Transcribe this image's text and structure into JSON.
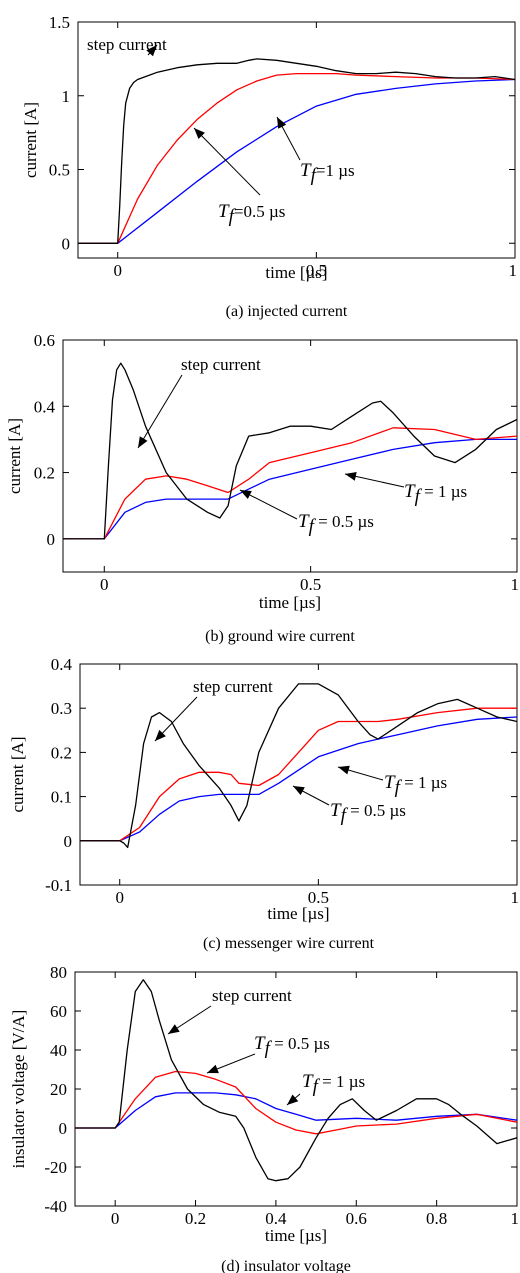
{
  "chart_data": [
    {
      "type": "line",
      "caption": "(a) injected current",
      "xlabel": "time [µs]",
      "ylabel": "current [A]",
      "xlim": [
        -0.1,
        1
      ],
      "ylim": [
        -0.1,
        1.5
      ],
      "xticks": [
        "0",
        "0.5",
        "1"
      ],
      "xtick_values": [
        0,
        0.5,
        1
      ],
      "yticks": [
        "0",
        "0.5",
        "1",
        "1.5"
      ],
      "ytick_values": [
        0,
        0.5,
        1,
        1.5
      ],
      "grid": false,
      "series": [
        {
          "name": "step current",
          "color": "#000000",
          "x": [
            -0.1,
            0,
            0.005,
            0.01,
            0.015,
            0.02,
            0.03,
            0.04,
            0.05,
            0.08,
            0.1,
            0.15,
            0.2,
            0.25,
            0.3,
            0.33,
            0.35,
            0.4,
            0.5,
            0.55,
            0.6,
            0.65,
            0.7,
            0.75,
            0.8,
            0.85,
            0.9,
            0.95,
            1
          ],
          "y": [
            0,
            0,
            0.25,
            0.55,
            0.8,
            0.95,
            1.05,
            1.09,
            1.11,
            1.14,
            1.16,
            1.19,
            1.21,
            1.22,
            1.22,
            1.24,
            1.25,
            1.24,
            1.2,
            1.17,
            1.15,
            1.15,
            1.16,
            1.15,
            1.13,
            1.12,
            1.12,
            1.13,
            1.11
          ]
        },
        {
          "name": "Tf = 0.5 µs",
          "color": "#ff0000",
          "x": [
            -0.1,
            0,
            0.05,
            0.1,
            0.15,
            0.2,
            0.25,
            0.3,
            0.35,
            0.4,
            0.45,
            0.5,
            0.55,
            0.6,
            0.7,
            0.8,
            0.9,
            1
          ],
          "y": [
            0,
            0,
            0.3,
            0.53,
            0.7,
            0.84,
            0.95,
            1.04,
            1.1,
            1.14,
            1.15,
            1.15,
            1.15,
            1.14,
            1.13,
            1.12,
            1.12,
            1.11
          ]
        },
        {
          "name": "Tf = 1 µs",
          "color": "#0000ff",
          "x": [
            -0.1,
            0,
            0.1,
            0.2,
            0.3,
            0.4,
            0.5,
            0.6,
            0.7,
            0.8,
            0.9,
            1
          ],
          "y": [
            0,
            0,
            0.21,
            0.42,
            0.62,
            0.79,
            0.93,
            1.01,
            1.05,
            1.08,
            1.1,
            1.11
          ]
        }
      ],
      "annotations": [
        {
          "text": "step current",
          "style": "plain"
        },
        {
          "text": "T",
          "sub": "f",
          "rest": "=1 µs",
          "style": "italic"
        },
        {
          "text": "T",
          "sub": "f",
          "rest": "=0.5 µs",
          "style": "italic"
        }
      ]
    },
    {
      "type": "line",
      "caption": "(b) ground wire current",
      "xlabel": "time [µs]",
      "ylabel": "current [A]",
      "xlim": [
        -0.1,
        1
      ],
      "ylim": [
        -0.1,
        0.6
      ],
      "xticks": [
        "0",
        "0.5",
        "1"
      ],
      "xtick_values": [
        0,
        0.5,
        1
      ],
      "yticks": [
        "0",
        "0.2",
        "0.4",
        "0.6"
      ],
      "ytick_values": [
        0,
        0.2,
        0.4,
        0.6
      ],
      "grid": false,
      "series": [
        {
          "name": "step current",
          "color": "#000000",
          "x": [
            -0.1,
            0,
            0.01,
            0.02,
            0.03,
            0.04,
            0.05,
            0.07,
            0.1,
            0.15,
            0.2,
            0.25,
            0.28,
            0.3,
            0.32,
            0.35,
            0.4,
            0.45,
            0.5,
            0.55,
            0.6,
            0.65,
            0.67,
            0.7,
            0.75,
            0.8,
            0.85,
            0.9,
            0.95,
            1
          ],
          "y": [
            0,
            0,
            0.22,
            0.42,
            0.51,
            0.53,
            0.51,
            0.45,
            0.34,
            0.2,
            0.12,
            0.08,
            0.063,
            0.1,
            0.22,
            0.31,
            0.32,
            0.34,
            0.34,
            0.33,
            0.37,
            0.41,
            0.415,
            0.38,
            0.31,
            0.25,
            0.23,
            0.27,
            0.33,
            0.36
          ]
        },
        {
          "name": "Tf = 0.5 µs",
          "color": "#ff0000",
          "x": [
            -0.1,
            0,
            0.05,
            0.1,
            0.15,
            0.2,
            0.25,
            0.3,
            0.35,
            0.4,
            0.5,
            0.6,
            0.7,
            0.8,
            0.9,
            1
          ],
          "y": [
            0,
            0,
            0.12,
            0.18,
            0.19,
            0.18,
            0.16,
            0.14,
            0.18,
            0.23,
            0.26,
            0.29,
            0.335,
            0.33,
            0.3,
            0.31
          ]
        },
        {
          "name": "Tf = 1 µs",
          "color": "#0000ff",
          "x": [
            -0.1,
            0,
            0.05,
            0.1,
            0.15,
            0.2,
            0.25,
            0.3,
            0.35,
            0.4,
            0.5,
            0.6,
            0.7,
            0.8,
            0.9,
            1
          ],
          "y": [
            0,
            0,
            0.08,
            0.11,
            0.12,
            0.12,
            0.12,
            0.12,
            0.15,
            0.18,
            0.21,
            0.24,
            0.27,
            0.29,
            0.3,
            0.3
          ]
        }
      ],
      "annotations": [
        {
          "text": "step current",
          "style": "plain"
        },
        {
          "text": "T",
          "sub": "f",
          "rest": " = 1 µs",
          "style": "italic"
        },
        {
          "text": "T",
          "sub": "f",
          "rest": " = 0.5 µs",
          "style": "italic"
        }
      ]
    },
    {
      "type": "line",
      "caption": "(c) messenger wire current",
      "xlabel": "time [µs]",
      "ylabel": "current [A]",
      "xlim": [
        -0.1,
        1
      ],
      "ylim": [
        -0.1,
        0.4
      ],
      "xticks": [
        "0",
        "0.5",
        "1"
      ],
      "xtick_values": [
        0,
        0.5,
        1
      ],
      "yticks": [
        "-0.1",
        "0",
        "0.1",
        "0.2",
        "0.3",
        "0.4"
      ],
      "ytick_values": [
        -0.1,
        0,
        0.1,
        0.2,
        0.3,
        0.4
      ],
      "grid": false,
      "series": [
        {
          "name": "step current",
          "color": "#000000",
          "x": [
            -0.1,
            0,
            0.01,
            0.02,
            0.04,
            0.06,
            0.08,
            0.1,
            0.13,
            0.16,
            0.2,
            0.25,
            0.28,
            0.3,
            0.32,
            0.35,
            0.4,
            0.45,
            0.5,
            0.55,
            0.6,
            0.63,
            0.65,
            0.7,
            0.75,
            0.8,
            0.85,
            0.9,
            0.95,
            1
          ],
          "y": [
            0,
            0,
            -0.005,
            -0.015,
            0.08,
            0.22,
            0.28,
            0.29,
            0.27,
            0.22,
            0.17,
            0.12,
            0.08,
            0.045,
            0.08,
            0.2,
            0.3,
            0.355,
            0.355,
            0.33,
            0.27,
            0.24,
            0.23,
            0.26,
            0.29,
            0.31,
            0.32,
            0.3,
            0.28,
            0.27
          ]
        },
        {
          "name": "Tf = 0.5 µs",
          "color": "#ff0000",
          "x": [
            -0.1,
            0,
            0.05,
            0.1,
            0.15,
            0.2,
            0.25,
            0.28,
            0.3,
            0.35,
            0.4,
            0.45,
            0.5,
            0.55,
            0.6,
            0.65,
            0.7,
            0.8,
            0.9,
            1
          ],
          "y": [
            0,
            0,
            0.03,
            0.1,
            0.14,
            0.155,
            0.155,
            0.15,
            0.13,
            0.125,
            0.15,
            0.2,
            0.25,
            0.27,
            0.27,
            0.27,
            0.275,
            0.29,
            0.3,
            0.3
          ]
        },
        {
          "name": "Tf = 1 µs",
          "color": "#0000ff",
          "x": [
            -0.1,
            0,
            0.05,
            0.1,
            0.15,
            0.2,
            0.25,
            0.3,
            0.35,
            0.4,
            0.45,
            0.5,
            0.6,
            0.7,
            0.8,
            0.9,
            1
          ],
          "y": [
            0,
            0,
            0.02,
            0.06,
            0.09,
            0.1,
            0.105,
            0.105,
            0.105,
            0.13,
            0.16,
            0.19,
            0.22,
            0.24,
            0.26,
            0.275,
            0.28
          ]
        }
      ],
      "annotations": [
        {
          "text": "step current",
          "style": "plain"
        },
        {
          "text": "T",
          "sub": "f",
          "rest": " = 1 µs",
          "style": "italic"
        },
        {
          "text": "T",
          "sub": "f",
          "rest": " = 0.5 µs",
          "style": "italic"
        }
      ]
    },
    {
      "type": "line",
      "caption": "(d) insulator voltage",
      "xlabel": "time [µs]",
      "ylabel": "insulator voltage [V/A]",
      "xlim": [
        -0.1,
        1
      ],
      "ylim": [
        -40,
        80
      ],
      "xticks": [
        "0",
        "0.2",
        "0.4",
        "0.6",
        "0.8",
        "1"
      ],
      "xtick_values": [
        0,
        0.2,
        0.4,
        0.6,
        0.8,
        1
      ],
      "yticks": [
        "-40",
        "-20",
        "0",
        "20",
        "40",
        "60",
        "80"
      ],
      "ytick_values": [
        -40,
        -20,
        0,
        20,
        40,
        60,
        80
      ],
      "grid": false,
      "series": [
        {
          "name": "step current",
          "color": "#000000",
          "x": [
            -0.1,
            0,
            0.01,
            0.03,
            0.05,
            0.07,
            0.09,
            0.11,
            0.14,
            0.18,
            0.22,
            0.26,
            0.3,
            0.32,
            0.35,
            0.38,
            0.4,
            0.43,
            0.46,
            0.5,
            0.53,
            0.56,
            0.59,
            0.62,
            0.65,
            0.7,
            0.75,
            0.8,
            0.83,
            0.86,
            0.9,
            0.95,
            1
          ],
          "y": [
            0,
            0,
            3,
            40,
            70,
            76,
            70,
            55,
            35,
            20,
            12,
            8,
            6,
            0,
            -15,
            -26,
            -27,
            -26,
            -20,
            -5,
            5,
            12,
            15,
            9,
            4,
            9,
            15,
            15,
            12,
            7,
            1,
            -8,
            -5
          ]
        },
        {
          "name": "Tf = 0.5 µs",
          "color": "#ff0000",
          "x": [
            -0.1,
            0,
            0.05,
            0.1,
            0.15,
            0.2,
            0.25,
            0.3,
            0.35,
            0.4,
            0.45,
            0.5,
            0.55,
            0.6,
            0.7,
            0.8,
            0.9,
            1
          ],
          "y": [
            0,
            0,
            15,
            26,
            29,
            28,
            25,
            21,
            10,
            3,
            -1,
            -3,
            -1,
            1,
            2,
            5,
            7,
            3
          ]
        },
        {
          "name": "Tf = 1 µs",
          "color": "#0000ff",
          "x": [
            -0.1,
            0,
            0.05,
            0.1,
            0.15,
            0.2,
            0.25,
            0.3,
            0.35,
            0.4,
            0.45,
            0.5,
            0.6,
            0.7,
            0.8,
            0.9,
            1
          ],
          "y": [
            0,
            0,
            9,
            16,
            18,
            18,
            18,
            17,
            15,
            10,
            7,
            4,
            5,
            4,
            6,
            7,
            4
          ]
        }
      ],
      "annotations": [
        {
          "text": "step current",
          "style": "plain"
        },
        {
          "text": "T",
          "sub": "f",
          "rest": " = 0.5 µs",
          "style": "italic"
        },
        {
          "text": "T",
          "sub": "f",
          "rest": " = 1 µs",
          "style": "italic"
        }
      ]
    }
  ]
}
